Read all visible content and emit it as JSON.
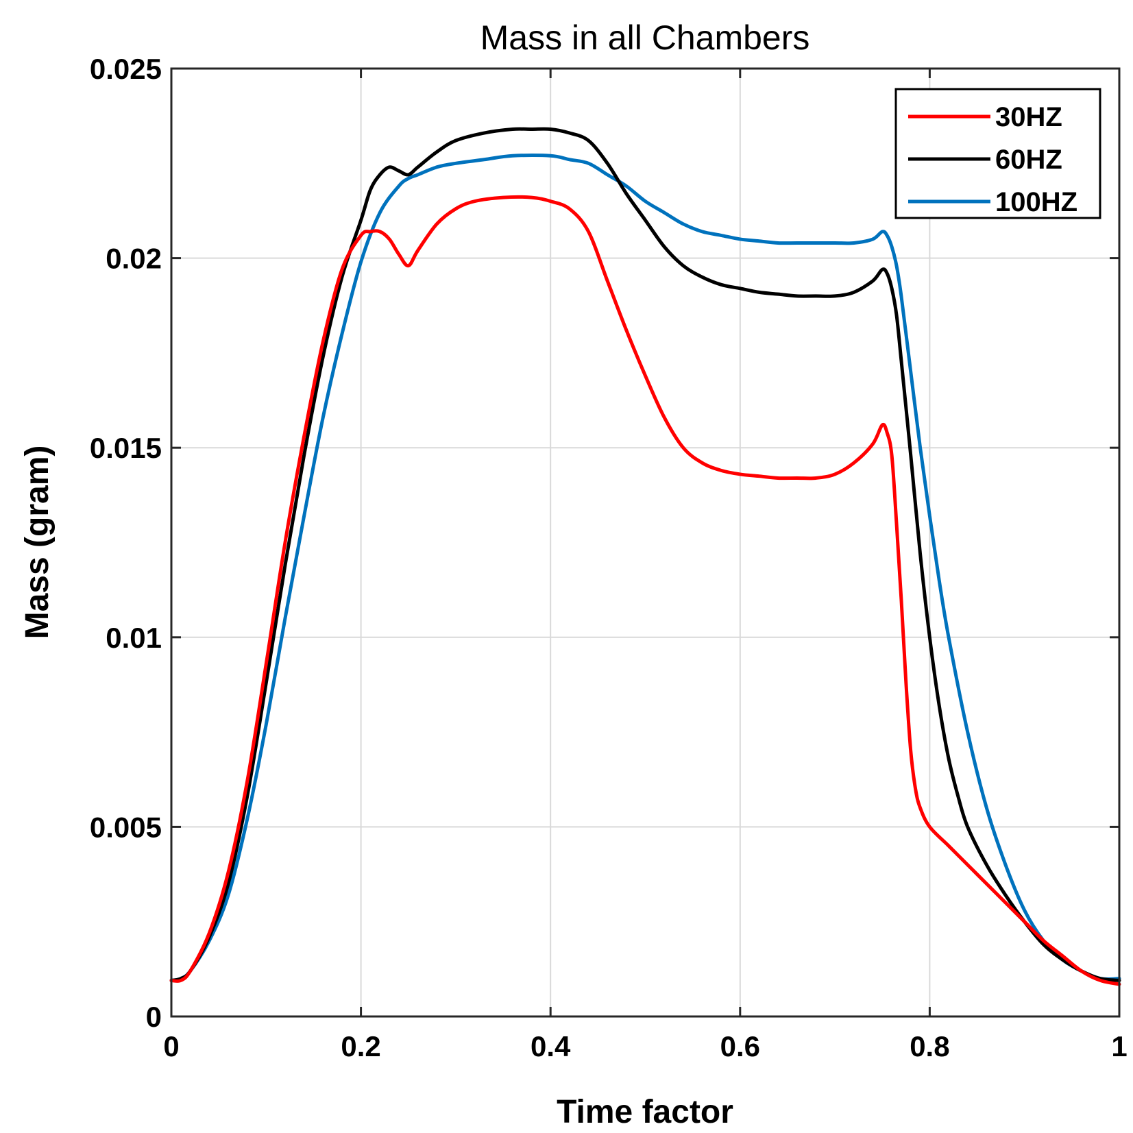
{
  "chart_data": {
    "type": "line",
    "title": "Mass in all Chambers",
    "xlabel": "Time factor",
    "ylabel": "Mass (gram)",
    "xlim": [
      0,
      1
    ],
    "ylim": [
      0,
      0.025
    ],
    "grid": true,
    "legend_position": "top-right",
    "x_ticks": [
      0,
      0.2,
      0.4,
      0.6,
      0.8,
      1
    ],
    "x_tick_labels": [
      "0",
      "0.2",
      "0.4",
      "0.6",
      "0.8",
      "1"
    ],
    "y_ticks": [
      0,
      0.005,
      0.01,
      0.015,
      0.02,
      0.025
    ],
    "y_tick_labels": [
      "0",
      "0.005",
      "0.01",
      "0.015",
      "0.02",
      "0.025"
    ],
    "series": [
      {
        "name": "30HZ",
        "color": "#ff0000",
        "x": [
          0,
          0.01,
          0.02,
          0.04,
          0.06,
          0.08,
          0.1,
          0.12,
          0.14,
          0.16,
          0.18,
          0.2,
          0.21,
          0.22,
          0.23,
          0.24,
          0.25,
          0.26,
          0.28,
          0.3,
          0.32,
          0.35,
          0.38,
          0.4,
          0.42,
          0.44,
          0.46,
          0.48,
          0.5,
          0.52,
          0.54,
          0.56,
          0.58,
          0.6,
          0.62,
          0.64,
          0.66,
          0.68,
          0.7,
          0.72,
          0.74,
          0.75,
          0.755,
          0.76,
          0.765,
          0.77,
          0.775,
          0.78,
          0.785,
          0.79,
          0.8,
          0.82,
          0.84,
          0.86,
          0.88,
          0.9,
          0.92,
          0.94,
          0.96,
          0.98,
          1.0
        ],
        "values": [
          0.00095,
          0.00095,
          0.0012,
          0.0022,
          0.0038,
          0.0062,
          0.0093,
          0.0125,
          0.0153,
          0.0178,
          0.0197,
          0.0206,
          0.0207,
          0.0207,
          0.0205,
          0.0201,
          0.0198,
          0.0202,
          0.0209,
          0.0213,
          0.0215,
          0.0216,
          0.0216,
          0.0215,
          0.0213,
          0.0207,
          0.0194,
          0.0181,
          0.0169,
          0.0158,
          0.015,
          0.0146,
          0.0144,
          0.0143,
          0.01425,
          0.0142,
          0.0142,
          0.0142,
          0.0143,
          0.0146,
          0.0151,
          0.0156,
          0.0154,
          0.0148,
          0.013,
          0.011,
          0.0088,
          0.007,
          0.006,
          0.0055,
          0.005,
          0.0045,
          0.004,
          0.0035,
          0.003,
          0.0025,
          0.002,
          0.0016,
          0.0012,
          0.00095,
          0.00085
        ]
      },
      {
        "name": "60HZ",
        "color": "#000000",
        "x": [
          0,
          0.01,
          0.02,
          0.04,
          0.06,
          0.08,
          0.1,
          0.12,
          0.14,
          0.16,
          0.18,
          0.2,
          0.21,
          0.22,
          0.23,
          0.24,
          0.25,
          0.26,
          0.28,
          0.3,
          0.33,
          0.36,
          0.38,
          0.4,
          0.42,
          0.44,
          0.46,
          0.48,
          0.5,
          0.52,
          0.54,
          0.56,
          0.58,
          0.6,
          0.62,
          0.64,
          0.66,
          0.68,
          0.7,
          0.72,
          0.74,
          0.75,
          0.755,
          0.76,
          0.765,
          0.77,
          0.78,
          0.79,
          0.8,
          0.81,
          0.82,
          0.83,
          0.84,
          0.86,
          0.88,
          0.9,
          0.92,
          0.94,
          0.96,
          0.98,
          1.0
        ],
        "values": [
          0.00095,
          0.001,
          0.0012,
          0.0021,
          0.0035,
          0.0058,
          0.0088,
          0.0119,
          0.0148,
          0.0174,
          0.0195,
          0.021,
          0.0218,
          0.0222,
          0.0224,
          0.0223,
          0.0222,
          0.0224,
          0.0228,
          0.0231,
          0.0233,
          0.0234,
          0.0234,
          0.0234,
          0.0233,
          0.0231,
          0.0225,
          0.0217,
          0.021,
          0.0203,
          0.0198,
          0.0195,
          0.0193,
          0.0192,
          0.0191,
          0.01905,
          0.019,
          0.019,
          0.019,
          0.0191,
          0.0194,
          0.0197,
          0.0196,
          0.0192,
          0.0185,
          0.0173,
          0.0148,
          0.0122,
          0.01,
          0.0082,
          0.0068,
          0.0058,
          0.005,
          0.004,
          0.0032,
          0.0025,
          0.0019,
          0.0015,
          0.0012,
          0.001,
          0.00095
        ]
      },
      {
        "name": "100HZ",
        "color": "#0072bd",
        "x": [
          0,
          0.01,
          0.02,
          0.04,
          0.06,
          0.08,
          0.1,
          0.12,
          0.14,
          0.16,
          0.18,
          0.2,
          0.22,
          0.24,
          0.25,
          0.26,
          0.28,
          0.3,
          0.33,
          0.36,
          0.4,
          0.42,
          0.44,
          0.46,
          0.48,
          0.5,
          0.52,
          0.54,
          0.56,
          0.58,
          0.6,
          0.62,
          0.64,
          0.66,
          0.68,
          0.7,
          0.72,
          0.74,
          0.75,
          0.755,
          0.76,
          0.765,
          0.77,
          0.78,
          0.79,
          0.8,
          0.81,
          0.82,
          0.84,
          0.86,
          0.88,
          0.9,
          0.92,
          0.94,
          0.96,
          0.98,
          1.0
        ],
        "values": [
          0.00095,
          0.001,
          0.0012,
          0.002,
          0.0032,
          0.0052,
          0.0077,
          0.0105,
          0.0132,
          0.0158,
          0.018,
          0.0199,
          0.0212,
          0.0219,
          0.0221,
          0.0222,
          0.0224,
          0.0225,
          0.0226,
          0.0227,
          0.0227,
          0.0226,
          0.0225,
          0.0222,
          0.0219,
          0.0215,
          0.0212,
          0.0209,
          0.0207,
          0.0206,
          0.0205,
          0.02045,
          0.0204,
          0.0204,
          0.0204,
          0.0204,
          0.0204,
          0.0205,
          0.0207,
          0.0206,
          0.0203,
          0.0198,
          0.019,
          0.017,
          0.015,
          0.0132,
          0.0115,
          0.01,
          0.0075,
          0.0055,
          0.004,
          0.0028,
          0.002,
          0.0015,
          0.0012,
          0.001,
          0.001
        ]
      }
    ]
  }
}
